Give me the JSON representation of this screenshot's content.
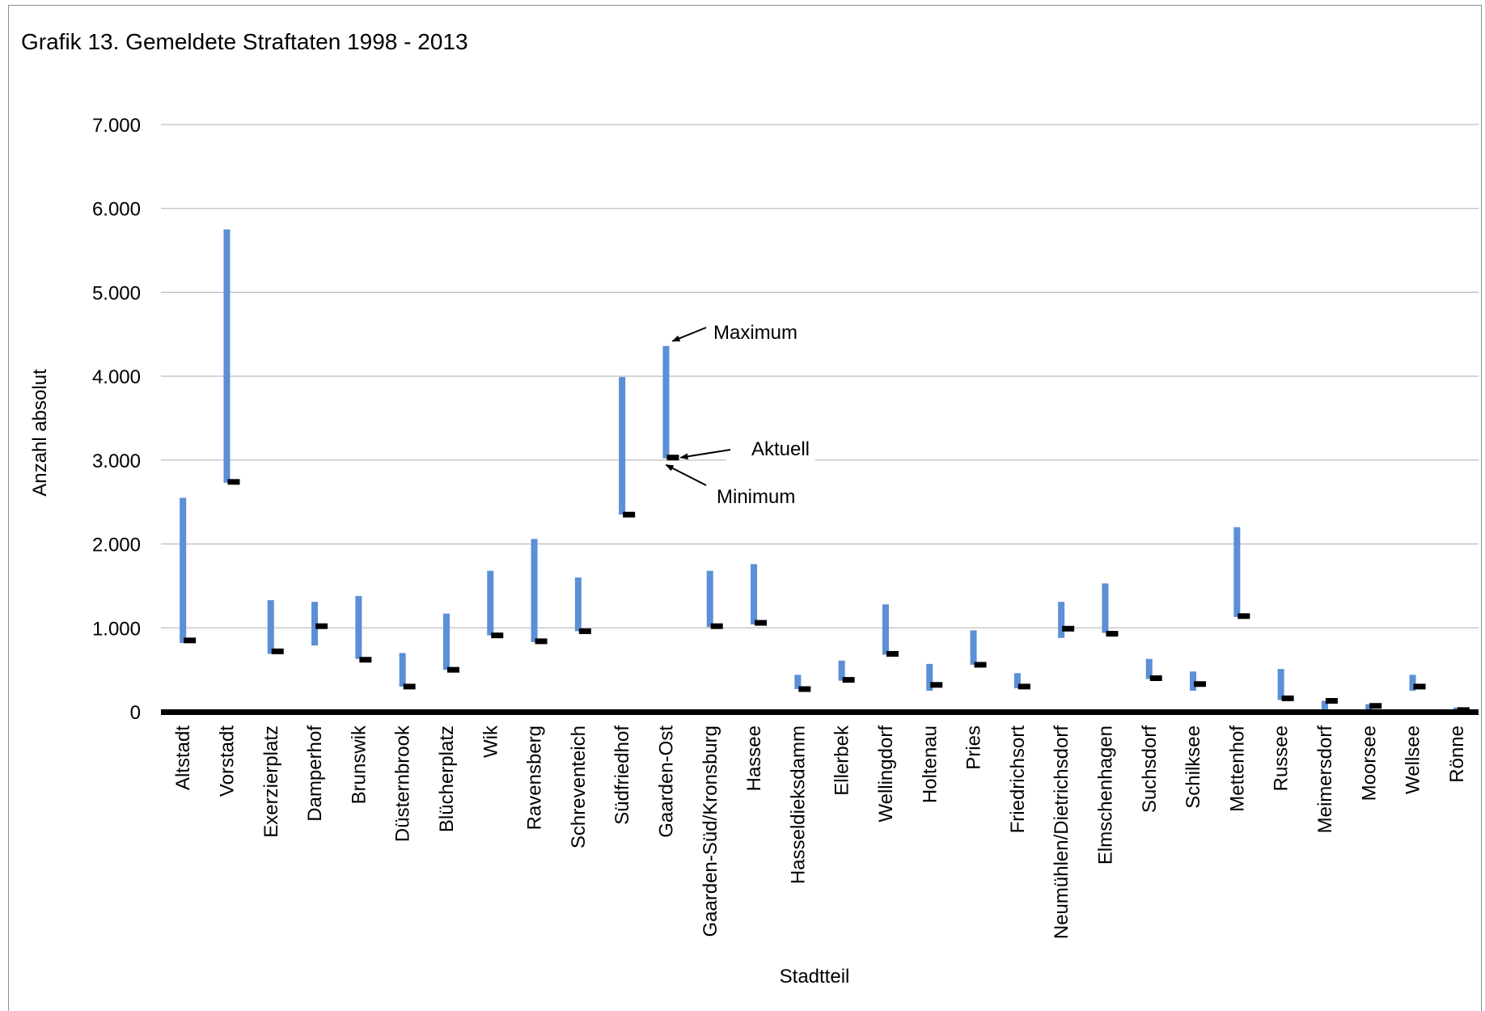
{
  "chart_data": {
    "type": "range",
    "title": "Grafik 13. Gemeldete Straftaten 1998 - 2013",
    "xlabel": "Stadtteil",
    "ylabel": "Anzahl absolut",
    "ylim": [
      0,
      7000
    ],
    "yticks": [
      0,
      1000,
      2000,
      3000,
      4000,
      5000,
      6000,
      7000
    ],
    "ytick_labels": [
      "0",
      "1.000",
      "2.000",
      "3.000",
      "4.000",
      "5.000",
      "6.000",
      "7.000"
    ],
    "grid": true,
    "colors": {
      "range_bar": "#5b8fd6",
      "current_marker": "#000000",
      "gridline": "#bfbfbf",
      "axis": "#000000"
    },
    "categories": [
      "Altstadt",
      "Vorstadt",
      "Exerzierplatz",
      "Damperhof",
      "Brunswik",
      "Düsternbrook",
      "Blücherplatz",
      "Wik",
      "Ravensberg",
      "Schreventeich",
      "Südfriedhof",
      "Gaarden-Ost",
      "Gaarden-Süd/Kronsburg",
      "Hassee",
      "Hasseldieksdamm",
      "Ellerbek",
      "Wellingdorf",
      "Holtenau",
      "Pries",
      "Friedrichsort",
      "Neumühlen/Dietrichsdorf",
      "Elmschenhagen",
      "Suchsdorf",
      "Schilksee",
      "Mettenhof",
      "Russee",
      "Meimersdorf",
      "Moorsee",
      "Wellsee",
      "Rönne"
    ],
    "series": [
      {
        "name": "Maximum",
        "values": [
          2550,
          5750,
          1330,
          1310,
          1380,
          700,
          1170,
          1680,
          2060,
          1600,
          3990,
          4360,
          1680,
          1760,
          440,
          610,
          1280,
          570,
          970,
          460,
          1310,
          1530,
          630,
          480,
          2200,
          510,
          130,
          90,
          440,
          50
        ]
      },
      {
        "name": "Minimum",
        "values": [
          820,
          2730,
          690,
          790,
          630,
          300,
          500,
          910,
          830,
          960,
          2350,
          3020,
          1010,
          1040,
          270,
          370,
          680,
          250,
          560,
          280,
          880,
          940,
          390,
          250,
          1130,
          140,
          30,
          10,
          250,
          10
        ]
      },
      {
        "name": "Aktuell",
        "values": [
          850,
          2740,
          720,
          1020,
          620,
          300,
          500,
          910,
          840,
          960,
          2350,
          3030,
          1020,
          1060,
          270,
          380,
          690,
          320,
          560,
          300,
          990,
          930,
          400,
          330,
          1140,
          160,
          130,
          70,
          300,
          20
        ]
      }
    ],
    "annotations": [
      {
        "text": "Maximum",
        "target": "Gaarden-Ost",
        "series": "Maximum"
      },
      {
        "text": "Aktuell",
        "target": "Gaarden-Ost",
        "series": "Aktuell"
      },
      {
        "text": "Minimum",
        "target": "Gaarden-Ost",
        "series": "Minimum"
      }
    ]
  }
}
